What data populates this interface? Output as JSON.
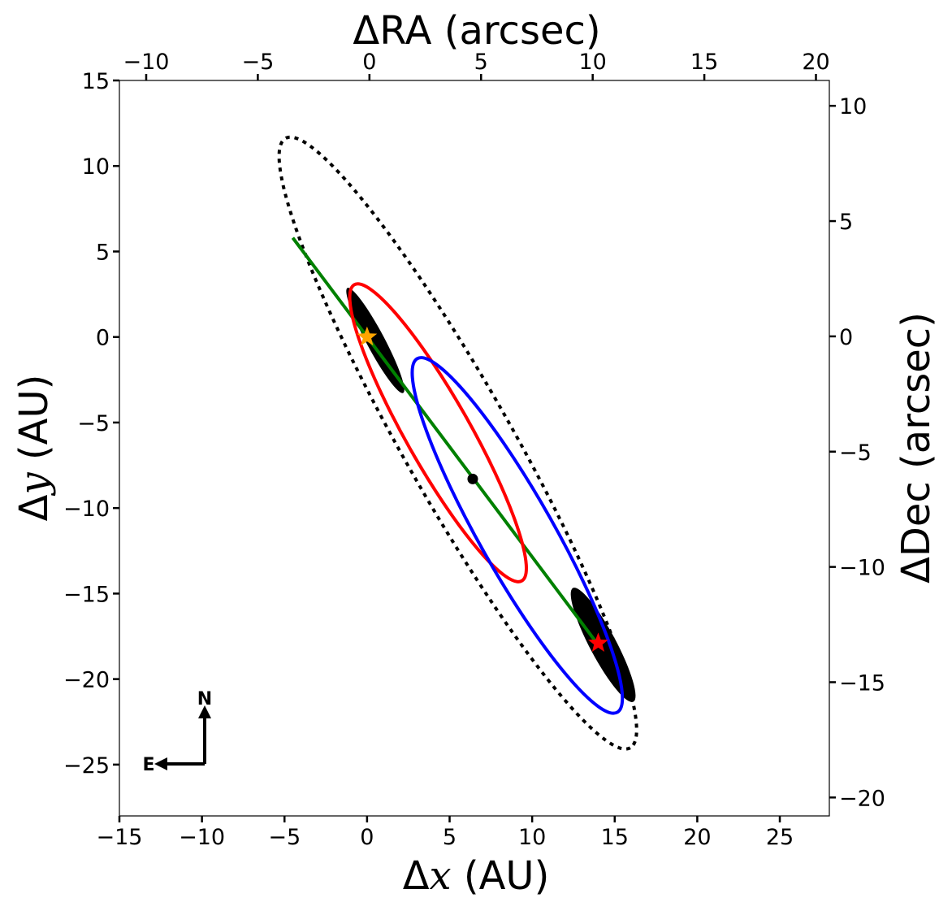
{
  "chart_data": {
    "type": "scatter",
    "bottom_axis": {
      "label_prefix": "Δ",
      "label_var": "x",
      "label_suffix": " (AU)",
      "range": [
        -15,
        28
      ],
      "ticks": [
        -15,
        -10,
        -5,
        0,
        5,
        10,
        15,
        20,
        25
      ],
      "tick_labels": [
        "−15",
        "−10",
        "−5",
        "0",
        "5",
        "10",
        "15",
        "20",
        "25"
      ]
    },
    "left_axis": {
      "label_prefix": "Δ",
      "label_var": "y",
      "label_suffix": " (AU)",
      "range": [
        -28,
        15
      ],
      "ticks": [
        -25,
        -20,
        -15,
        -10,
        -5,
        0,
        5,
        10,
        15
      ],
      "tick_labels": [
        "−25",
        "−20",
        "−15",
        "−10",
        "−5",
        "0",
        "5",
        "10",
        "15"
      ]
    },
    "top_axis": {
      "label": "ΔRA (arcsec)",
      "range": [
        -11.2,
        20.6
      ],
      "ticks": [
        -10,
        -5,
        0,
        5,
        10,
        15,
        20
      ],
      "tick_labels": [
        "−10",
        "−5",
        "0",
        "5",
        "10",
        "15",
        "20"
      ]
    },
    "right_axis": {
      "label": "ΔDec (arcsec)",
      "range": [
        -20.8,
        11.1
      ],
      "ticks": [
        -20,
        -15,
        -10,
        -5,
        0,
        5,
        10
      ],
      "tick_labels": [
        "−20",
        "−15",
        "−10",
        "−5",
        "0",
        "5",
        "10"
      ]
    },
    "grid": false,
    "elements": {
      "clouds": [
        {
          "name": "primary-cloud",
          "cx": 0.5,
          "cy": -0.2,
          "rx": 3.6,
          "ry": 0.55,
          "angle_deg": -62,
          "color": "#000000"
        },
        {
          "name": "secondary-cloud",
          "cx": 14.3,
          "cy": -18.0,
          "rx": 3.9,
          "ry": 0.8,
          "angle_deg": -62,
          "color": "#000000"
        }
      ],
      "outer_orbit": {
        "cx": 5.5,
        "cy": -6.2,
        "rx": 21.2,
        "ry": 3.3,
        "angle_deg": -60.5,
        "style": "dotted",
        "color": "#000000"
      },
      "red_orbit": {
        "cx": 4.3,
        "cy": -5.6,
        "rx": 10.3,
        "ry": 1.95,
        "angle_deg": -60.5,
        "color": "#ff0000"
      },
      "blue_orbit": {
        "cx": 9.1,
        "cy": -11.6,
        "rx": 12.3,
        "ry": 2.25,
        "angle_deg": -60.5,
        "color": "#0000ff"
      },
      "line_of_nodes": {
        "x": [
          -4.5,
          14.0
        ],
        "y": [
          5.8,
          -18.0
        ],
        "color": "#008000"
      },
      "center_point": {
        "x": 6.4,
        "y": -8.3,
        "color": "#000000"
      },
      "primary_star": {
        "x": 0.0,
        "y": 0.0,
        "color": "#ffa500"
      },
      "secondary_star": {
        "x": 14.0,
        "y": -17.9,
        "color": "#ff0000"
      }
    },
    "compass": {
      "north_label": "N",
      "east_label": "E"
    }
  }
}
